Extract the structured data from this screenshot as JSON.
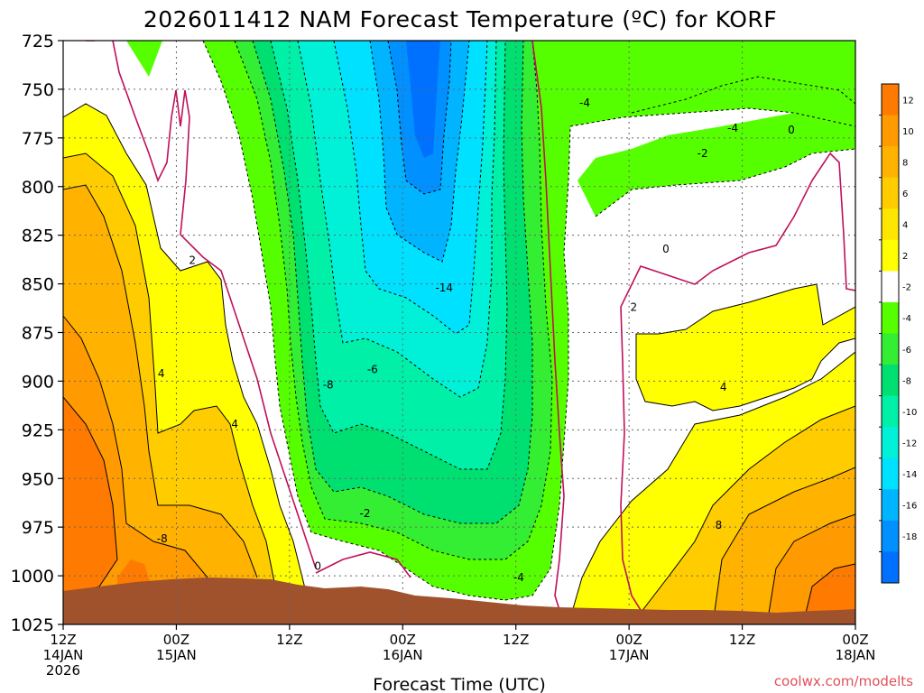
{
  "chart_data": {
    "type": "heatmap",
    "title": "2026011412 NAM Forecast Temperature (ºC) for KORF",
    "xlabel": "Forecast Time (UTC)",
    "ylabel": "",
    "y_ticks": [
      "725",
      "750",
      "775",
      "800",
      "825",
      "850",
      "875",
      "900",
      "925",
      "950",
      "975",
      "1000",
      "1025"
    ],
    "x_ticks": [
      {
        "line1": "12Z",
        "line2": "14JAN",
        "line3": "2026"
      },
      {
        "line1": "00Z",
        "line2": "15JAN",
        "line3": ""
      },
      {
        "line1": "12Z",
        "line2": "",
        "line3": ""
      },
      {
        "line1": "00Z",
        "line2": "16JAN",
        "line3": ""
      },
      {
        "line1": "12Z",
        "line2": "",
        "line3": ""
      },
      {
        "line1": "00Z",
        "line2": "17JAN",
        "line3": ""
      },
      {
        "line1": "12Z",
        "line2": "",
        "line3": ""
      },
      {
        "line1": "00Z",
        "line2": "18JAN",
        "line3": ""
      }
    ],
    "colorbar": {
      "labels": [
        "12",
        "10",
        "8",
        "6",
        "4",
        "2",
        "-2",
        "-4",
        "-6",
        "-8",
        "-10",
        "-12",
        "-14",
        "-16",
        "-18"
      ],
      "colors": [
        "#ff7a00",
        "#ff9a00",
        "#ffb300",
        "#ffcc00",
        "#ffe600",
        "#ffff00",
        "#ffffff",
        "#55ff00",
        "#33ee33",
        "#00e070",
        "#00f0a8",
        "#00f0d8",
        "#00e0ff",
        "#00b4ff",
        "#0090ff",
        "#0070ff"
      ]
    },
    "contour_labels": [
      {
        "text": "2",
        "t": 13.7,
        "p": 838
      },
      {
        "text": "4",
        "t": 10.4,
        "p": 896
      },
      {
        "text": "4",
        "t": 18.2,
        "p": 922
      },
      {
        "text": "-8",
        "t": 10.5,
        "p": 981
      },
      {
        "text": "0",
        "t": 27.0,
        "p": 995
      },
      {
        "text": "-8",
        "t": 28.1,
        "p": 902
      },
      {
        "text": "-6",
        "t": 32.8,
        "p": 894
      },
      {
        "text": "-2",
        "t": 32.0,
        "p": 968
      },
      {
        "text": "-14",
        "t": 40.4,
        "p": 852
      },
      {
        "text": "-4",
        "t": 48.3,
        "p": 1001
      },
      {
        "text": "-4",
        "t": 55.3,
        "p": 757
      },
      {
        "text": "-2",
        "t": 67.8,
        "p": 783
      },
      {
        "text": "-4",
        "t": 71.0,
        "p": 770
      },
      {
        "text": "0",
        "t": 77.2,
        "p": 771
      },
      {
        "text": "0",
        "t": 63.9,
        "p": 832
      },
      {
        "text": "2",
        "t": 60.5,
        "p": 862
      },
      {
        "text": "4",
        "t": 70.0,
        "p": 903
      },
      {
        "text": "8",
        "t": 69.5,
        "p": 974
      }
    ]
  },
  "credit": "coolwx.com/modelts"
}
